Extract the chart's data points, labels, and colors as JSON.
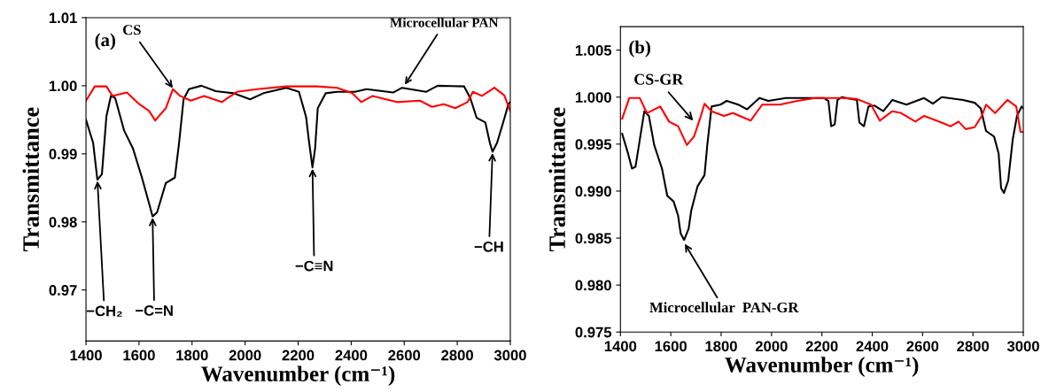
{
  "chart_data": [
    {
      "type": "line",
      "xlabel": "Wavenumber (cm⁻¹)",
      "ylabel": "Transmittance",
      "xlim": [
        1400,
        3000
      ],
      "xticks": [
        1400,
        1600,
        1800,
        2000,
        2200,
        2400,
        2600,
        2800,
        3000
      ],
      "ylim": [
        0.9625,
        1.01
      ],
      "yticks": [
        0.97,
        0.98,
        0.99,
        {
          "value": 1.0,
          "label": "1.00"
        },
        1.01
      ],
      "annotations": [
        "(a)",
        {
          "text": "CS",
          "x": 1730,
          "y": 0.9995
        },
        {
          "text": "Microcellular PAN",
          "x": 2600,
          "y": 1.0
        },
        {
          "text": "−CH₂",
          "x": 1443,
          "y": 0.9862
        },
        {
          "text": "−C=N",
          "x": 1651,
          "y": 0.9808
        },
        {
          "text": "−C≡N",
          "x": 2254,
          "y": 0.988
        },
        {
          "text": "−CH",
          "x": 2933,
          "y": 0.9903
        }
      ],
      "series": [
        {
          "color": "#000000",
          "x": [
            1400,
            1427,
            1443,
            1460,
            1477,
            1494,
            1510,
            1544,
            1577,
            1611,
            1638,
            1651,
            1668,
            1701,
            1735,
            1751,
            1768,
            1788,
            1835,
            1889,
            1956,
            2019,
            2069,
            2156,
            2203,
            2230,
            2240,
            2254,
            2264,
            2274,
            2304,
            2347,
            2381,
            2414,
            2458,
            2558,
            2592,
            2682,
            2726,
            2826,
            2849,
            2873,
            2906,
            2923,
            2933,
            2950,
            2973,
            2993,
            3000
          ],
          "values": [
            0.995,
            0.9916,
            0.9862,
            0.987,
            0.9955,
            0.9985,
            0.9982,
            0.9934,
            0.9908,
            0.9865,
            0.9827,
            0.9808,
            0.9814,
            0.9857,
            0.9865,
            0.9916,
            0.998,
            0.9995,
            1.0,
            0.9992,
            0.9989,
            0.998,
            0.9989,
            0.9997,
            0.9991,
            0.9954,
            0.9921,
            0.988,
            0.9908,
            0.9967,
            0.9989,
            0.9991,
            0.9991,
            0.9991,
            0.9995,
            0.999,
            0.9997,
            0.9991,
            1.0,
            0.9999,
            0.9982,
            0.9953,
            0.9946,
            0.9916,
            0.9903,
            0.9916,
            0.9946,
            0.9973,
            0.9976
          ]
        },
        {
          "color": "#ff0000",
          "x": [
            1400,
            1433,
            1477,
            1500,
            1554,
            1601,
            1638,
            1661,
            1701,
            1728,
            1755,
            1795,
            1845,
            1912,
            1969,
            2046,
            2156,
            2270,
            2347,
            2404,
            2438,
            2481,
            2572,
            2659,
            2705,
            2749,
            2792,
            2839,
            2859,
            2893,
            2940,
            2977,
            3000
          ],
          "values": [
            0.9978,
            0.9999,
            0.9999,
            0.9985,
            0.999,
            0.9973,
            0.9963,
            0.9949,
            0.9967,
            0.9995,
            0.9985,
            0.9978,
            0.9985,
            0.9976,
            0.9991,
            0.9995,
            0.9999,
            0.9999,
            0.9997,
            0.9989,
            0.9976,
            0.9985,
            0.9976,
            0.9978,
            0.9969,
            0.9973,
            0.9967,
            0.9976,
            0.9991,
            0.9985,
            0.9997,
            0.9986,
            0.9963
          ]
        }
      ]
    },
    {
      "type": "line",
      "xlabel": "Wavenumber (cm⁻¹)",
      "ylabel": "Transmittance",
      "xlim": [
        1400,
        3000
      ],
      "xticks": [
        1400,
        1600,
        1800,
        2000,
        2200,
        2400,
        2600,
        2800,
        3000
      ],
      "ylim": [
        0.975,
        1.0075
      ],
      "yticks": [
        {
          "value": 0.975,
          "label": "0.975"
        },
        {
          "value": 0.98,
          "label": "0.980"
        },
        {
          "value": 0.985,
          "label": "0.985"
        },
        {
          "value": 0.99,
          "label": "0.990"
        },
        {
          "value": 0.995,
          "label": "0.995"
        },
        {
          "value": 1.0,
          "label": "1.000"
        },
        {
          "value": 1.005,
          "label": "1.005"
        }
      ],
      "annotations": [
        "(b)",
        {
          "text": "CS-GR",
          "x": 1692,
          "y": 0.9974
        },
        {
          "text": "Microcellular  PAN-GR",
          "x": 1653,
          "y": 0.9845
        }
      ],
      "series": [
        {
          "color": "#000000",
          "x": [
            1407,
            1428,
            1446,
            1460,
            1477,
            1495,
            1513,
            1534,
            1565,
            1586,
            1611,
            1629,
            1639,
            1653,
            1671,
            1681,
            1706,
            1734,
            1745,
            1762,
            1797,
            1822,
            1868,
            1903,
            1952,
            1987,
            2058,
            2103,
            2209,
            2226,
            2237,
            2251,
            2262,
            2279,
            2339,
            2349,
            2367,
            2385,
            2409,
            2444,
            2480,
            2536,
            2606,
            2641,
            2676,
            2761,
            2807,
            2831,
            2852,
            2884,
            2902,
            2912,
            2923,
            2940,
            2958,
            2975,
            2993,
            3000
          ],
          "values": [
            0.9961,
            0.9942,
            0.9924,
            0.9926,
            0.9955,
            0.9985,
            0.998,
            0.9949,
            0.9924,
            0.9895,
            0.9889,
            0.9874,
            0.9855,
            0.9848,
            0.986,
            0.9879,
            0.9905,
            0.9917,
            0.9949,
            0.999,
            0.9992,
            0.9996,
            0.9992,
            0.9987,
            0.9999,
            0.9996,
            0.9999,
            0.9999,
            0.9999,
            0.9996,
            0.9969,
            0.9971,
            0.9997,
            1.0,
            0.9997,
            0.9973,
            0.9969,
            0.999,
            0.9991,
            0.9985,
            0.9997,
            0.9992,
            0.9999,
            0.9993,
            1.0,
            0.9997,
            0.9994,
            0.9988,
            0.9964,
            0.9958,
            0.994,
            0.9903,
            0.9898,
            0.9911,
            0.9955,
            0.998,
            0.999,
            0.9988
          ]
        },
        {
          "color": "#ff0000",
          "x": [
            1407,
            1435,
            1477,
            1505,
            1558,
            1593,
            1629,
            1664,
            1692,
            1716,
            1734,
            1762,
            1811,
            1847,
            1917,
            1963,
            2033,
            2103,
            2174,
            2279,
            2339,
            2395,
            2430,
            2480,
            2515,
            2571,
            2606,
            2655,
            2712,
            2743,
            2771,
            2807,
            2835,
            2852,
            2888,
            2937,
            2972,
            2989,
            3000
          ],
          "values": [
            0.9977,
            0.9999,
            0.9999,
            0.9983,
            0.999,
            0.9974,
            0.9969,
            0.9949,
            0.9958,
            0.9977,
            0.9993,
            0.9985,
            0.998,
            0.9983,
            0.9975,
            0.9992,
            0.9992,
            0.9996,
            0.9999,
            0.9999,
            0.9998,
            0.9992,
            0.9975,
            0.9985,
            0.9983,
            0.9974,
            0.998,
            0.9975,
            0.9969,
            0.9974,
            0.9966,
            0.9968,
            0.998,
            0.9992,
            0.9983,
            0.9997,
            0.999,
            0.9963,
            0.9963
          ]
        }
      ]
    }
  ]
}
